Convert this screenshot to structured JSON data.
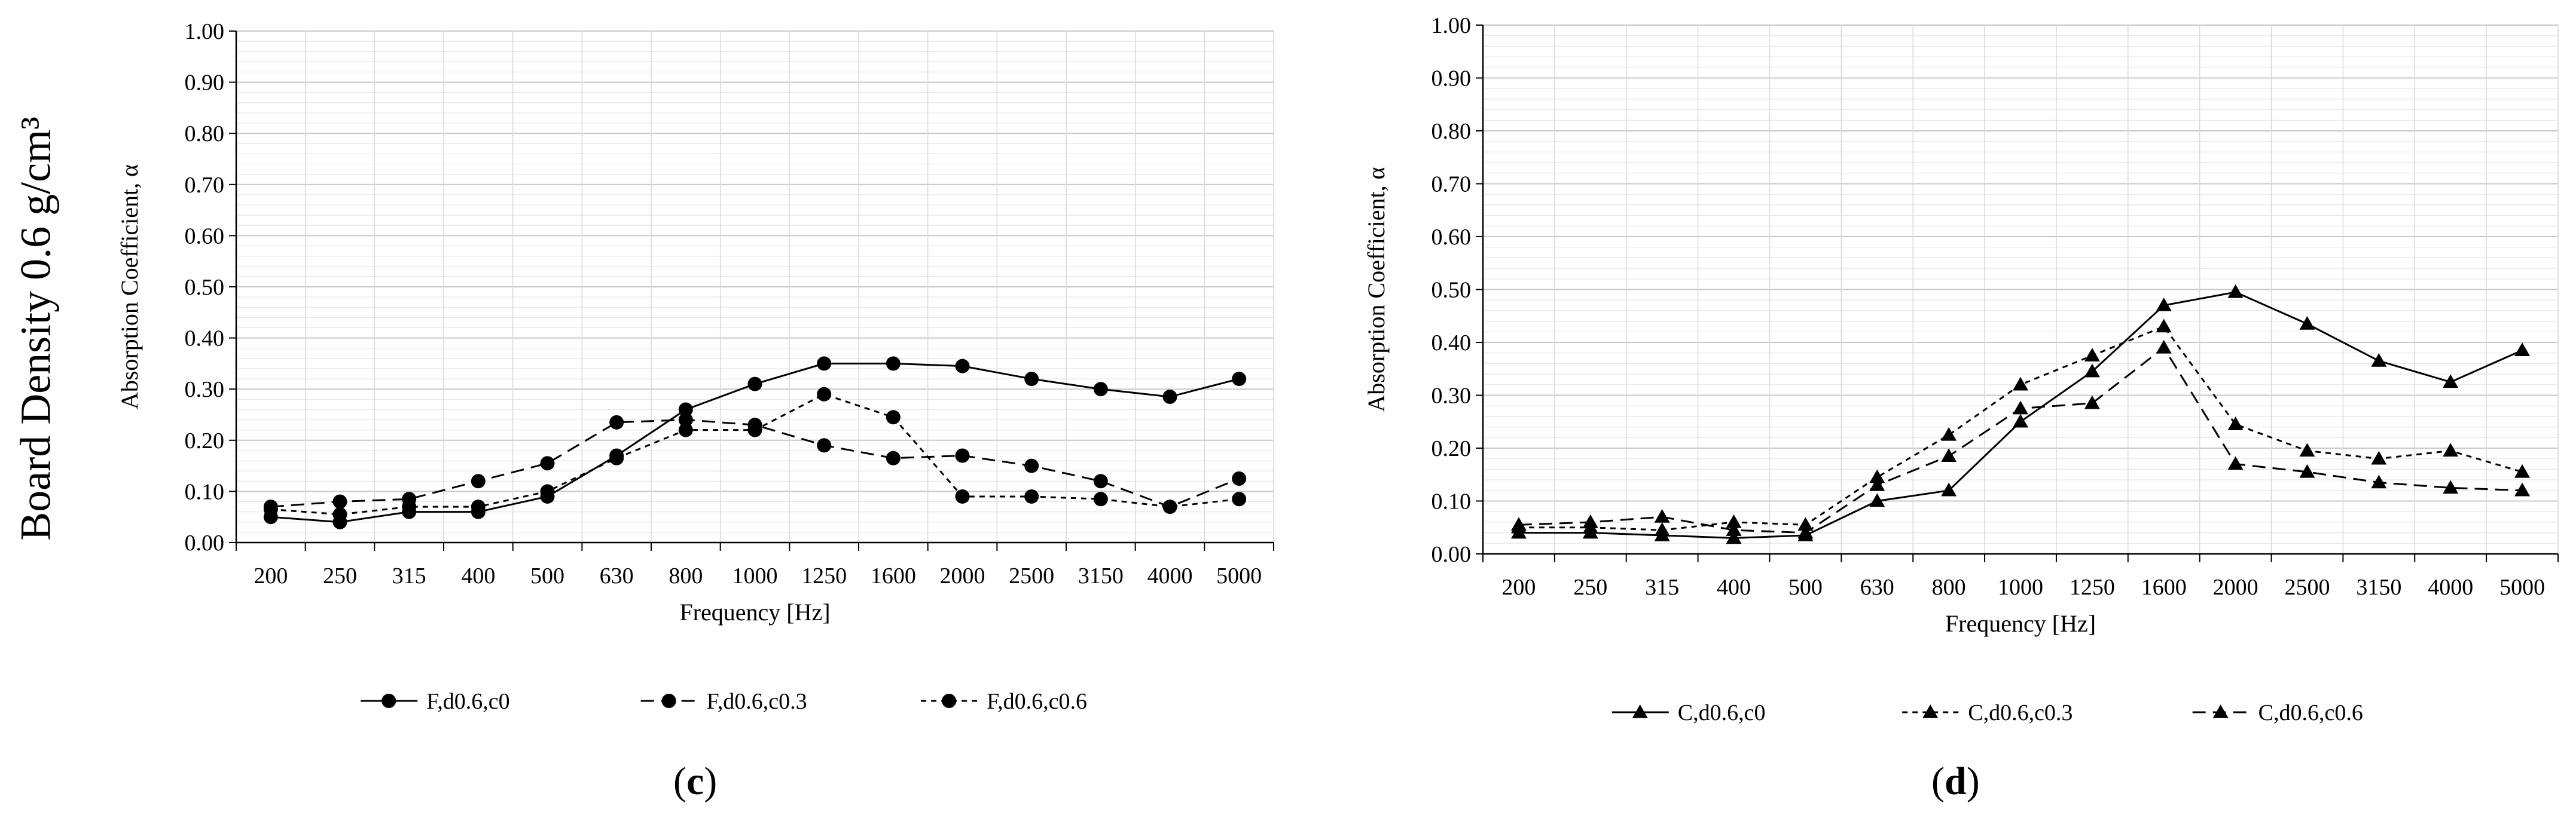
{
  "side_label": "Board Density 0.6 g/cm³",
  "panel_c_label": "c",
  "panel_d_label": "d",
  "chart_data": [
    {
      "type": "line",
      "xlabel": "Frequency [Hz]",
      "ylabel": "Absorption Coefficient, α",
      "ylim": [
        0,
        1.0
      ],
      "yticks": [
        "0.00",
        "0.10",
        "0.20",
        "0.30",
        "0.40",
        "0.50",
        "0.60",
        "0.70",
        "0.80",
        "0.90",
        "1.00"
      ],
      "grid": true,
      "legend": "bottom",
      "marker": "circle",
      "categories": [
        "200",
        "250",
        "315",
        "400",
        "500",
        "630",
        "800",
        "1000",
        "1250",
        "1600",
        "2000",
        "2500",
        "3150",
        "4000",
        "5000"
      ],
      "series": [
        {
          "name": "F,d0.6,c0",
          "dash": "solid",
          "values": [
            0.05,
            0.04,
            0.06,
            0.06,
            0.09,
            0.17,
            0.26,
            0.31,
            0.35,
            0.35,
            0.345,
            0.32,
            0.3,
            0.285,
            0.32
          ]
        },
        {
          "name": "F,d0.6,c0.3",
          "dash": "long",
          "values": [
            0.07,
            0.08,
            0.085,
            0.12,
            0.155,
            0.235,
            0.24,
            0.23,
            0.19,
            0.165,
            0.17,
            0.15,
            0.12,
            0.07,
            0.125
          ]
        },
        {
          "name": "F,d0.6,c0.6",
          "dash": "short",
          "values": [
            0.065,
            0.055,
            0.07,
            0.07,
            0.1,
            0.165,
            0.22,
            0.22,
            0.29,
            0.245,
            0.09,
            0.09,
            0.085,
            0.07,
            0.085
          ]
        }
      ]
    },
    {
      "type": "line",
      "xlabel": "Frequency [Hz]",
      "ylabel": "Absorption Coefficient, α",
      "ylim": [
        0,
        1.0
      ],
      "yticks": [
        "0.00",
        "0.10",
        "0.20",
        "0.30",
        "0.40",
        "0.50",
        "0.60",
        "0.70",
        "0.80",
        "0.90",
        "1.00"
      ],
      "grid": true,
      "legend": "bottom",
      "marker": "triangle",
      "categories": [
        "200",
        "250",
        "315",
        "400",
        "500",
        "630",
        "800",
        "1000",
        "1250",
        "1600",
        "2000",
        "2500",
        "3150",
        "4000",
        "5000"
      ],
      "series": [
        {
          "name": "C,d0.6,c0",
          "dash": "solid",
          "values": [
            0.04,
            0.04,
            0.035,
            0.03,
            0.035,
            0.1,
            0.12,
            0.25,
            0.345,
            0.47,
            0.495,
            0.435,
            0.365,
            0.325,
            0.385
          ]
        },
        {
          "name": "C,d0.6,c0.3",
          "dash": "short",
          "values": [
            0.05,
            0.05,
            0.045,
            0.06,
            0.055,
            0.145,
            0.225,
            0.32,
            0.375,
            0.43,
            0.245,
            0.195,
            0.18,
            0.195,
            0.155
          ]
        },
        {
          "name": "C,d0.6,c0.6",
          "dash": "long",
          "values": [
            0.055,
            0.06,
            0.07,
            0.045,
            0.04,
            0.13,
            0.185,
            0.275,
            0.285,
            0.39,
            0.17,
            0.155,
            0.135,
            0.125,
            0.12
          ]
        }
      ]
    }
  ]
}
